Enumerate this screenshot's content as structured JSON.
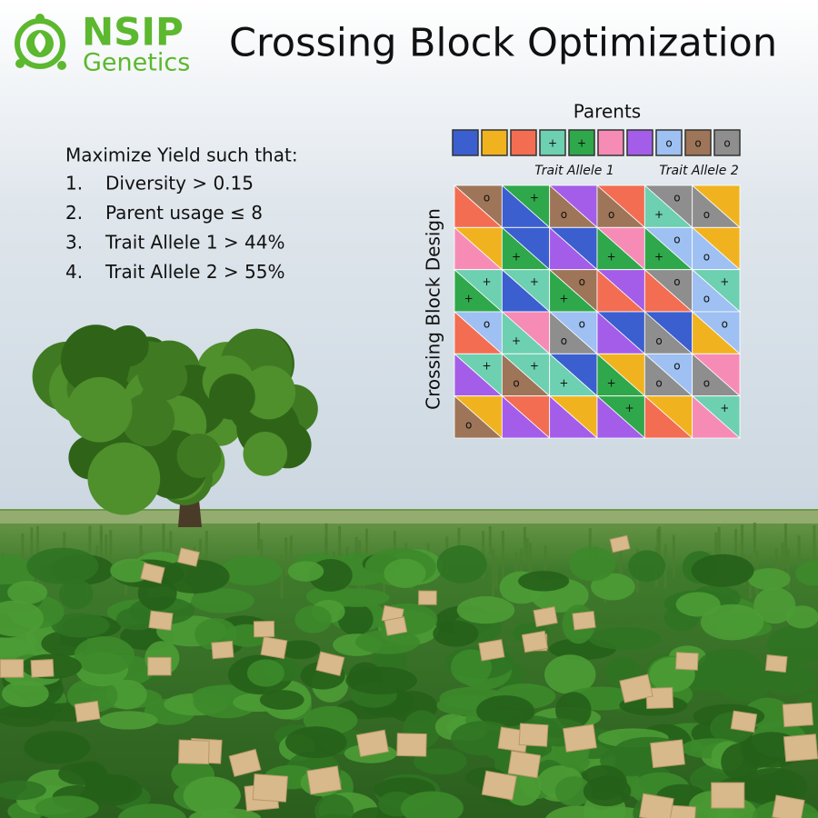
{
  "logo": {
    "brand": "NSIP",
    "subtitle": "Genetics"
  },
  "title": "Crossing Block Optimization",
  "objective": {
    "heading": "Maximize Yield such that:",
    "constraints": [
      {
        "number": "1.",
        "text": "Diversity > 0.15"
      },
      {
        "number": "2.",
        "text": "Parent usage ≤ 8"
      },
      {
        "number": "3.",
        "text": "Trait Allele 1 > 44%"
      },
      {
        "number": "4.",
        "text": "Trait Allele 2 > 55%"
      }
    ]
  },
  "parents": {
    "label": "Parents",
    "items": [
      {
        "color": "#3b5fcf"
      },
      {
        "color": "#f0b31f"
      },
      {
        "color": "#f36d52"
      },
      {
        "color": "#6dd0b0",
        "mark": "+"
      },
      {
        "color": "#2ea84a",
        "mark": "+"
      },
      {
        "color": "#f68cb6"
      },
      {
        "color": "#a45de8"
      },
      {
        "color": "#9ec0f2",
        "mark": "o"
      },
      {
        "color": "#9e7558",
        "mark": "o"
      },
      {
        "color": "#8e8e8e",
        "mark": "o"
      }
    ],
    "trait_labels": [
      "Trait Allele 1",
      "Trait Allele 2"
    ]
  },
  "design": {
    "label": "Crossing Block Design",
    "rows": [
      [
        {
          "upper": {
            "color": "#9e7558",
            "mark": "o"
          },
          "lower": {
            "color": "#f36d52"
          }
        },
        {
          "upper": {
            "color": "#2ea84a",
            "mark": "+"
          },
          "lower": {
            "color": "#3b5fcf"
          }
        },
        {
          "upper": {
            "color": "#a45de8"
          },
          "lower": {
            "color": "#9e7558",
            "mark": "o"
          }
        },
        {
          "upper": {
            "color": "#f36d52"
          },
          "lower": {
            "color": "#9e7558",
            "mark": "o"
          }
        },
        {
          "upper": {
            "color": "#8e8e8e",
            "mark": "o"
          },
          "lower": {
            "color": "#6dd0b0",
            "mark": "+"
          }
        },
        {
          "upper": {
            "color": "#f0b31f"
          },
          "lower": {
            "color": "#8e8e8e",
            "mark": "o"
          }
        }
      ],
      [
        {
          "upper": {
            "color": "#f0b31f"
          },
          "lower": {
            "color": "#f68cb6"
          }
        },
        {
          "upper": {
            "color": "#3b5fcf"
          },
          "lower": {
            "color": "#2ea84a",
            "mark": "+"
          }
        },
        {
          "upper": {
            "color": "#3b5fcf"
          },
          "lower": {
            "color": "#a45de8"
          }
        },
        {
          "upper": {
            "color": "#f68cb6"
          },
          "lower": {
            "color": "#2ea84a",
            "mark": "+"
          }
        },
        {
          "upper": {
            "color": "#9ec0f2",
            "mark": "o"
          },
          "lower": {
            "color": "#2ea84a",
            "mark": "+"
          }
        },
        {
          "upper": {
            "color": "#f0b31f"
          },
          "lower": {
            "color": "#9ec0f2",
            "mark": "o"
          }
        }
      ],
      [
        {
          "upper": {
            "color": "#6dd0b0",
            "mark": "+"
          },
          "lower": {
            "color": "#2ea84a",
            "mark": "+"
          }
        },
        {
          "upper": {
            "color": "#6dd0b0",
            "mark": "+"
          },
          "lower": {
            "color": "#3b5fcf"
          }
        },
        {
          "upper": {
            "color": "#9e7558",
            "mark": "o"
          },
          "lower": {
            "color": "#2ea84a",
            "mark": "+"
          }
        },
        {
          "upper": {
            "color": "#a45de8"
          },
          "lower": {
            "color": "#f36d52"
          }
        },
        {
          "upper": {
            "color": "#8e8e8e",
            "mark": "o"
          },
          "lower": {
            "color": "#f36d52"
          }
        },
        {
          "upper": {
            "color": "#6dd0b0",
            "mark": "+"
          },
          "lower": {
            "color": "#9ec0f2",
            "mark": "o"
          }
        }
      ],
      [
        {
          "upper": {
            "color": "#9ec0f2",
            "mark": "o"
          },
          "lower": {
            "color": "#f36d52"
          }
        },
        {
          "upper": {
            "color": "#f68cb6"
          },
          "lower": {
            "color": "#6dd0b0",
            "mark": "+"
          }
        },
        {
          "upper": {
            "color": "#9ec0f2",
            "mark": "o"
          },
          "lower": {
            "color": "#8e8e8e",
            "mark": "o"
          }
        },
        {
          "upper": {
            "color": "#3b5fcf"
          },
          "lower": {
            "color": "#a45de8"
          }
        },
        {
          "upper": {
            "color": "#3b5fcf"
          },
          "lower": {
            "color": "#8e8e8e",
            "mark": "o"
          }
        },
        {
          "upper": {
            "color": "#9ec0f2",
            "mark": "o"
          },
          "lower": {
            "color": "#f0b31f"
          }
        }
      ],
      [
        {
          "upper": {
            "color": "#6dd0b0",
            "mark": "+"
          },
          "lower": {
            "color": "#a45de8"
          }
        },
        {
          "upper": {
            "color": "#6dd0b0",
            "mark": "+"
          },
          "lower": {
            "color": "#9e7558",
            "mark": "o"
          }
        },
        {
          "upper": {
            "color": "#3b5fcf"
          },
          "lower": {
            "color": "#6dd0b0",
            "mark": "+"
          }
        },
        {
          "upper": {
            "color": "#f0b31f"
          },
          "lower": {
            "color": "#2ea84a",
            "mark": "+"
          }
        },
        {
          "upper": {
            "color": "#9ec0f2",
            "mark": "o"
          },
          "lower": {
            "color": "#8e8e8e",
            "mark": "o"
          }
        },
        {
          "upper": {
            "color": "#f68cb6"
          },
          "lower": {
            "color": "#8e8e8e",
            "mark": "o"
          }
        }
      ],
      [
        {
          "upper": {
            "color": "#f0b31f"
          },
          "lower": {
            "color": "#9e7558",
            "mark": "o"
          }
        },
        {
          "upper": {
            "color": "#f36d52"
          },
          "lower": {
            "color": "#a45de8"
          }
        },
        {
          "upper": {
            "color": "#f0b31f"
          },
          "lower": {
            "color": "#a45de8"
          }
        },
        {
          "upper": {
            "color": "#2ea84a",
            "mark": "+"
          },
          "lower": {
            "color": "#a45de8"
          }
        },
        {
          "upper": {
            "color": "#f0b31f"
          },
          "lower": {
            "color": "#f36d52"
          }
        },
        {
          "upper": {
            "color": "#6dd0b0",
            "mark": "+"
          },
          "lower": {
            "color": "#f68cb6"
          }
        }
      ]
    ]
  }
}
